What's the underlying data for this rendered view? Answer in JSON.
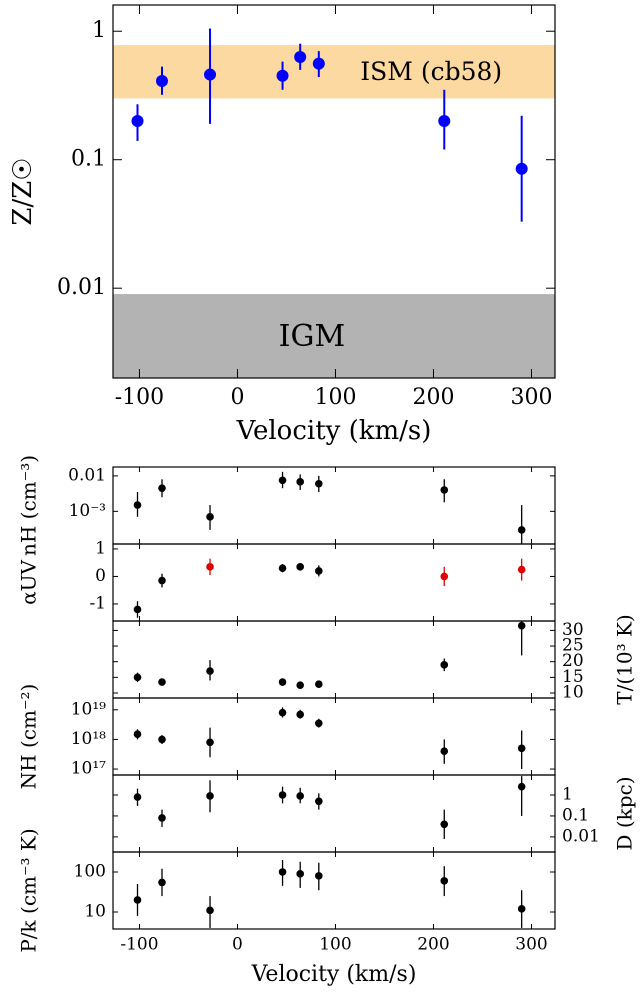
{
  "chart_data": [
    {
      "type": "scatter",
      "ylabel": "Z/Z☉",
      "xlabel": "Velocity (km/s)",
      "log_y": true,
      "xlim": [
        -127,
        324
      ],
      "xticks": [
        -100,
        0,
        100,
        200,
        300
      ],
      "ylim": [
        0.002,
        1.6
      ],
      "yticks": [
        0.01,
        0.1,
        1
      ],
      "y_side": "left",
      "bands": [
        {
          "label": "ISM (cb58)",
          "range": [
            0.3,
            0.78
          ],
          "color": "#fcd9a0"
        },
        {
          "label": "IGM",
          "range": [
            0.002,
            0.009
          ],
          "color": "#b3b3b3"
        }
      ],
      "x": [
        -102,
        -77,
        -28,
        46,
        64,
        83,
        211,
        290
      ],
      "series": [
        {
          "color": "#0000ff",
          "values": [
            0.2,
            0.41,
            0.46,
            0.45,
            0.63,
            0.56,
            0.2,
            0.085
          ],
          "err_low": [
            0.14,
            0.32,
            0.19,
            0.35,
            0.5,
            0.44,
            0.12,
            0.033
          ],
          "err_high": [
            0.27,
            0.53,
            1.05,
            0.58,
            0.8,
            0.7,
            0.35,
            0.22
          ]
        }
      ]
    },
    {
      "type": "scatter",
      "ylabel": "nH (cm⁻³)",
      "log_y": true,
      "xlim": [
        -127,
        324
      ],
      "xticks": [
        -100,
        0,
        100,
        200,
        300
      ],
      "ylim": [
        0.00012,
        0.0178
      ],
      "yticks": [
        {
          "value": 0.001,
          "label": "10⁻³"
        },
        0.01
      ],
      "y_side": "left",
      "x": [
        -102,
        -77,
        -28,
        46,
        64,
        83,
        211,
        290
      ],
      "series": [
        {
          "color": "#000000",
          "values": [
            0.0015,
            0.0045,
            0.0007,
            0.0075,
            0.0068,
            0.006,
            0.004,
            0.0003
          ],
          "err_low": [
            0.0007,
            0.0025,
            0.0003,
            0.0045,
            0.004,
            0.0035,
            0.0018,
            8e-05
          ],
          "err_high": [
            0.0035,
            0.008,
            0.0015,
            0.013,
            0.011,
            0.01,
            0.008,
            0.0015
          ]
        }
      ]
    },
    {
      "type": "scatter",
      "ylabel": "αUV",
      "log_y": false,
      "xlim": [
        -127,
        324
      ],
      "xticks": [
        -100,
        0,
        100,
        200,
        300
      ],
      "ylim": [
        -1.62,
        1.18
      ],
      "yticks": [
        -1,
        0,
        1
      ],
      "y_side": "left",
      "x": [
        -102,
        -77,
        -28,
        46,
        64,
        83,
        211,
        290
      ],
      "series": [
        {
          "point_colors": [
            "#000000",
            "#000000",
            "#e00000",
            "#000000",
            "#000000",
            "#000000",
            "#e00000",
            "#e00000"
          ],
          "values": [
            -1.2,
            -0.15,
            0.35,
            0.3,
            0.35,
            0.2,
            0.0,
            0.25
          ],
          "err_low": [
            -1.5,
            -0.4,
            0.05,
            0.15,
            0.25,
            0.0,
            -0.35,
            -0.15
          ],
          "err_high": [
            -0.9,
            0.1,
            0.65,
            0.45,
            0.45,
            0.4,
            0.35,
            0.65
          ]
        }
      ]
    },
    {
      "type": "scatter",
      "ylabel": "T/(10³ K)",
      "log_y": false,
      "xlim": [
        -127,
        324
      ],
      "xticks": [
        -100,
        0,
        100,
        200,
        300
      ],
      "ylim": [
        8.4,
        33
      ],
      "yticks": [
        10,
        15,
        20,
        25,
        30
      ],
      "y_side": "right",
      "x": [
        -102,
        -77,
        -28,
        46,
        64,
        83,
        211,
        290
      ],
      "series": [
        {
          "color": "#000000",
          "values": [
            15,
            13.5,
            17,
            13.5,
            12.5,
            12.8,
            19,
            31.5
          ],
          "err_low": [
            13.5,
            12.5,
            14,
            12.5,
            11.8,
            12,
            17,
            22
          ],
          "err_high": [
            16.5,
            14.5,
            20.5,
            14.5,
            13.2,
            13.6,
            21,
            40
          ]
        }
      ]
    },
    {
      "type": "scatter",
      "ylabel": "NH (cm⁻²)",
      "log_y": true,
      "xlim": [
        -127,
        324
      ],
      "xticks": [
        -100,
        0,
        100,
        200,
        300
      ],
      "ylim": [
        6.3e+16,
        2.5e+19
      ],
      "yticks": [
        {
          "value": 1e+17,
          "label": "10¹⁷"
        },
        {
          "value": 1e+18,
          "label": "10¹⁸"
        },
        {
          "value": 1e+19,
          "label": "10¹⁹"
        }
      ],
      "y_side": "left",
      "x": [
        -102,
        -77,
        -28,
        46,
        64,
        83,
        211,
        290
      ],
      "series": [
        {
          "color": "#000000",
          "values": [
            1.5e+18,
            1e+18,
            8e+17,
            8e+18,
            7e+18,
            3.5e+18,
            4e+17,
            5e+17
          ],
          "err_low": [
            1e+18,
            7e+17,
            2.5e+17,
            5.5e+18,
            5e+18,
            2.5e+18,
            1.5e+17,
            1e+17
          ],
          "err_high": [
            2.2e+18,
            1.4e+18,
            2.5e+18,
            1.2e+19,
            1e+19,
            5e+18,
            1e+18,
            2e+18
          ]
        }
      ]
    },
    {
      "type": "scatter",
      "ylabel": "D (kpc)",
      "log_y": true,
      "xlim": [
        -127,
        324
      ],
      "xticks": [
        -100,
        0,
        100,
        200,
        300
      ],
      "ylim": [
        0.0019,
        9
      ],
      "yticks": [
        0.01,
        0.1,
        1
      ],
      "y_side": "right",
      "x": [
        -102,
        -77,
        -28,
        46,
        64,
        83,
        211,
        290
      ],
      "series": [
        {
          "color": "#000000",
          "values": [
            0.8,
            0.08,
            0.9,
            1,
            0.9,
            0.5,
            0.04,
            2.5
          ],
          "err_low": [
            0.3,
            0.03,
            0.15,
            0.4,
            0.4,
            0.2,
            0.008,
            0.1
          ],
          "err_high": [
            2,
            0.2,
            5,
            2.5,
            2.2,
            1.2,
            0.2,
            8
          ]
        }
      ]
    },
    {
      "type": "scatter",
      "ylabel": "P/k (cm⁻³ K)",
      "xlabel": "Velocity (km/s)",
      "log_y": true,
      "xlim": [
        -127,
        324
      ],
      "xticks": [
        -100,
        0,
        100,
        200,
        300
      ],
      "ylim": [
        3.76,
        316
      ],
      "yticks": [
        10,
        100
      ],
      "y_side": "left",
      "x": [
        -102,
        -77,
        -28,
        46,
        64,
        83,
        211,
        290
      ],
      "series": [
        {
          "color": "#000000",
          "values": [
            20,
            55,
            11,
            100,
            90,
            80,
            60,
            12
          ],
          "err_low": [
            8,
            25,
            4,
            45,
            40,
            35,
            25,
            4
          ],
          "err_high": [
            50,
            120,
            25,
            200,
            180,
            170,
            140,
            35
          ]
        }
      ]
    }
  ]
}
